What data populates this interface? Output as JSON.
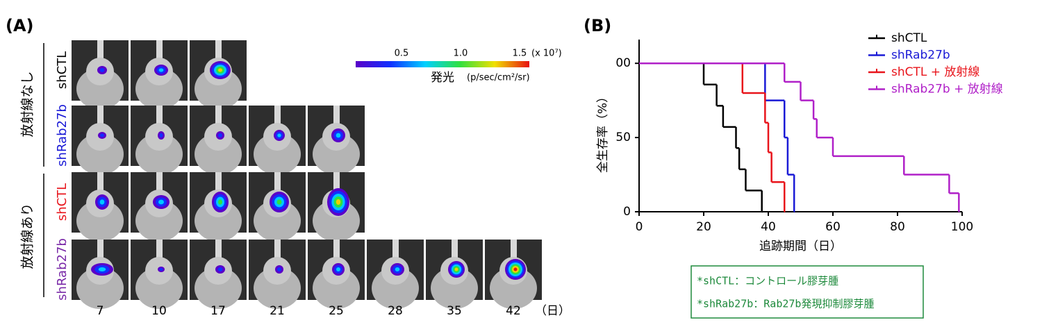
{
  "panel_a": {
    "label": "(A)",
    "groups": [
      "放射線なし",
      "放射線あり"
    ],
    "rows": [
      {
        "name": "shCTL",
        "color": "#000000"
      },
      {
        "name": "shRab27b",
        "color": "#1a1ad6"
      },
      {
        "name": "shCTL",
        "color": "#e8141b"
      },
      {
        "name": "shRab27b",
        "color": "#7a2aa8"
      }
    ],
    "days": [
      7,
      10,
      17,
      21,
      25,
      28,
      35,
      42
    ],
    "day_unit": "（日）",
    "colorbar": {
      "ticks": [
        "0.5",
        "1.0",
        "1.5"
      ],
      "scale": "(x 10⁷)",
      "title": "発光",
      "unit": "(p/sec/cm²/sr)"
    }
  },
  "panel_b": {
    "label": "(B)"
  },
  "chart_data": {
    "type": "step",
    "xlabel": "追跡期間（日）",
    "ylabel": "全生存率（%）",
    "xlim": [
      0,
      100
    ],
    "ylim": [
      0,
      116
    ],
    "xticks": [
      0,
      20,
      40,
      60,
      80,
      100
    ],
    "yticks": [
      0,
      50,
      {
        "value": 100,
        "label": "00"
      }
    ],
    "series": [
      {
        "name": "shCTL",
        "color": "#000000",
        "x": [
          0,
          20,
          24,
          26,
          30,
          31,
          33,
          38
        ],
        "values": [
          100,
          85.7,
          71.4,
          57.1,
          42.9,
          28.6,
          14.3,
          0
        ]
      },
      {
        "name": "shRab27b",
        "color": "#1a1ad6",
        "x": [
          0,
          39,
          45,
          46,
          48
        ],
        "values": [
          100,
          75,
          50,
          25,
          0
        ]
      },
      {
        "name": "shCTL + 放射線",
        "color": "#e8141b",
        "x": [
          0,
          32,
          39,
          40,
          41,
          45
        ],
        "values": [
          100,
          80,
          60,
          40,
          20,
          0
        ]
      },
      {
        "name": "shRab27b + 放射線",
        "color": "#b020c8",
        "x": [
          0,
          45,
          50,
          54,
          55,
          60,
          82,
          96,
          99
        ],
        "values": [
          100,
          87.5,
          75,
          62.5,
          50,
          37.5,
          25,
          12.5,
          0
        ]
      }
    ]
  },
  "note": {
    "lines": [
      "*shCTL：コントロール膠芽腫",
      "*shRab27b：Rab27b発現抑制膠芽腫"
    ]
  }
}
